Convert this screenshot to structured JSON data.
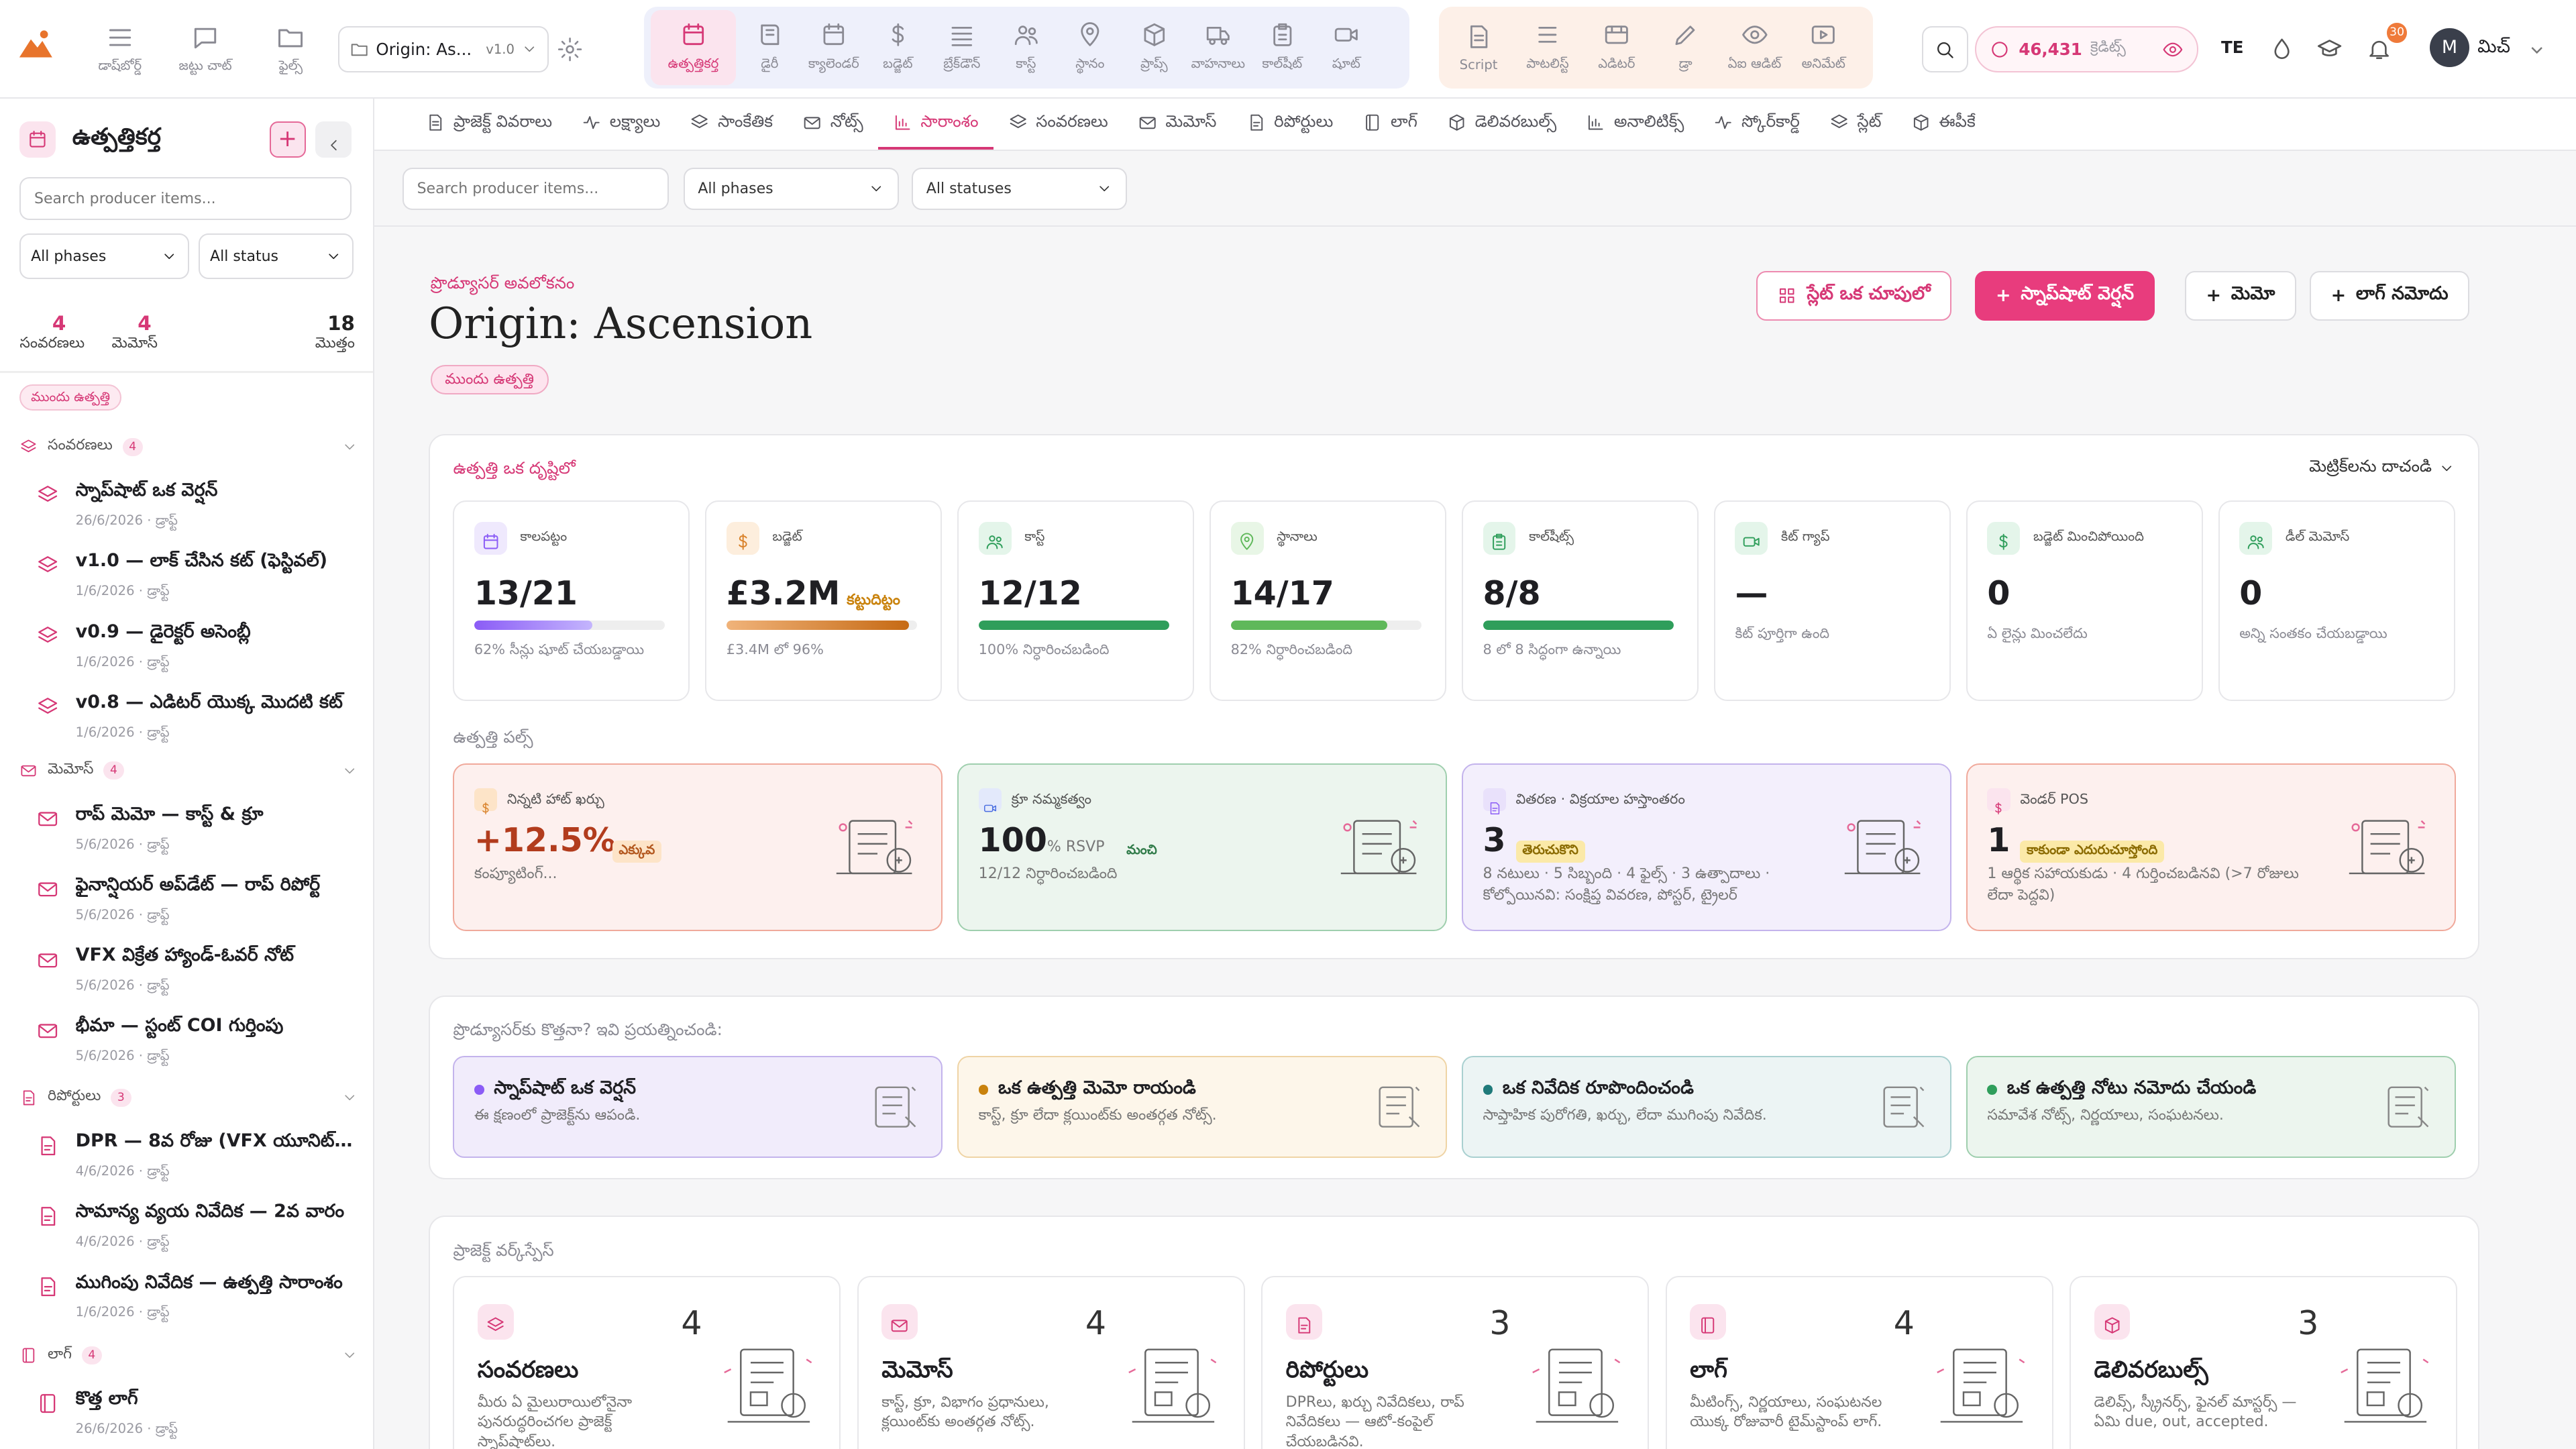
{
  "topnav": {
    "dashboard": "డాష్‌బోర్డ్",
    "team_chat": "జట్టు చాట్",
    "files": "ఫైల్స్",
    "project_name": "Origin: As...",
    "project_version": "v1.0",
    "modules": [
      "ఉత్పత్తికర్త",
      "డైరీ",
      "క్యాలెండర్",
      "బడ్జెట్",
      "బ్రేక్‌డౌన్",
      "కాస్ట్",
      "స్థానం",
      "ప్రాప్స్",
      "వాహనాలు",
      "కాల్‌షీట్",
      "షూట్"
    ],
    "modules2": [
      "Script",
      "పాటలిస్ట్",
      "ఎడిటర్",
      "డ్రా",
      "ఏఐ ఆడిట్",
      "అనిమేట్"
    ],
    "credits_value": "46,431",
    "credits_unit": "క్రెడిట్స్",
    "lang": "TE",
    "notif_count": "30",
    "avatar_letter": "M",
    "user_name": "మిచ్"
  },
  "sidebar": {
    "title": "ఉత్పత్తికర్త",
    "add": "+",
    "search_placeholder": "Search producer items...",
    "phase_select": "All phases",
    "status_select": "All status",
    "stats": {
      "versions_n": "4",
      "versions_l": "సంవరణలు",
      "memos_n": "4",
      "memos_l": "మెమోస్",
      "total_n": "18",
      "total_l": "మొత్తం"
    },
    "phase_badge": "ముందు ఉత్పత్తి",
    "groups": [
      {
        "label": "సంవరణలు",
        "count": "4",
        "items": [
          {
            "title": "స్నాప్‌షాట్ ఒక వెర్షన్",
            "sub": "26/6/2026 · డ్రాఫ్ట్"
          },
          {
            "title": "v1.0 — లాక్ చేసిన కట్ (ఫెస్టివల్)",
            "sub": "1/6/2026 · డ్రాఫ్ట్"
          },
          {
            "title": "v0.9 — డైరెక్టర్ అసెంబ్లీ",
            "sub": "1/6/2026 · డ్రాఫ్ట్"
          },
          {
            "title": "v0.8 — ఎడిటర్ యొక్క మొదటి కట్",
            "sub": "1/6/2026 · డ్రాఫ్ట్"
          }
        ]
      },
      {
        "label": "మెమోస్",
        "count": "4",
        "items": [
          {
            "title": "రాప్ మెమో — కాస్ట్ & క్రూ",
            "sub": "5/6/2026 · డ్రాఫ్ట్"
          },
          {
            "title": "ఫైనాన్షియర్ అప్‌డేట్ — రాప్ రిపోర్ట్",
            "sub": "5/6/2026 · డ్రాఫ్ట్"
          },
          {
            "title": "VFX విక్రేత హ్యాండ్-ఓవర్ నోట్",
            "sub": "5/6/2026 · డ్రాఫ్ట్"
          },
          {
            "title": "భీమా — స్టంట్ COI గుర్తింపు",
            "sub": "5/6/2026 · డ్రాఫ్ట్"
          }
        ]
      },
      {
        "label": "రిపోర్టులు",
        "count": "3",
        "items": [
          {
            "title": "DPR — 8వ రోజు (VFX యూనిట్ రోజు)",
            "sub": "4/6/2026 · డ్రాఫ్ట్"
          },
          {
            "title": "సామాన్య వ్యయ నివేదిక — 2వ వారం",
            "sub": "4/6/2026 · డ్రాఫ్ట్"
          },
          {
            "title": "ముగింపు నివేదిక — ఉత్పత్తి సారాంశం",
            "sub": "1/6/2026 · డ్రాఫ్ట్"
          }
        ]
      },
      {
        "label": "లాగ్",
        "count": "4",
        "items": [
          {
            "title": "కొత్త లాగ్",
            "sub": "26/6/2026 · డ్రాఫ్ట్"
          }
        ]
      }
    ]
  },
  "tabs": [
    "ప్రాజెక్ట్ వివరాలు",
    "లక్ష్యాలు",
    "సాంకేతిక",
    "నోట్స్",
    "సారాంశం",
    "సంవరణలు",
    "మెమోస్",
    "రిపోర్టులు",
    "లాగ్",
    "డెలివరబుల్స్",
    "అనాలిటిక్స్",
    "స్కోర్‌కార్డ్",
    "స్లేట్",
    "ఈపీకే"
  ],
  "filters": {
    "search_placeholder": "Search producer items...",
    "phase": "All phases",
    "status": "All statuses"
  },
  "header": {
    "kicker": "ప్రొడ్యూసర్ అవలోకనం",
    "title": "Origin: Ascension",
    "phase": "ముందు ఉత్పత్తి",
    "btn_slate": "స్లేట్ ఒక చూపులో",
    "btn_snapshot": "స్నాప్‌షాట్ వెర్షన్",
    "btn_memo": "మెమో",
    "btn_log": "లాగ్ నమోదు"
  },
  "glance": {
    "title": "ఉత్పత్తి ఒక దృష్టిలో",
    "hide_metrics": "మెట్రిక్‌లను దాచండి",
    "metrics": [
      {
        "label": "కాలపట్టం",
        "value": "13/21",
        "tag": "",
        "sub": "62% సీన్లు షూట్ చేయబడ్డాయి",
        "progress": 62,
        "color": "#8b5cf6",
        "bg": "#efe9fd",
        "icolor": "#8b5cf6"
      },
      {
        "label": "బడ్జెట్",
        "value": "£3.2M",
        "tag": "కట్టుదిట్టం",
        "sub": "£3.4M లో 96%",
        "progress": 96,
        "color": "#d9822b",
        "bg": "#fdeedd",
        "icolor": "#d9822b"
      },
      {
        "label": "కాస్ట్",
        "value": "12/12",
        "tag": "",
        "sub": "100% నిర్ధారించబడింది",
        "progress": 100,
        "color": "#2f9e5b",
        "bg": "#e4f5ea",
        "icolor": "#2f9e5b"
      },
      {
        "label": "స్థానాలు",
        "value": "14/17",
        "tag": "",
        "sub": "82% నిర్ధారించబడింది",
        "progress": 82,
        "color": "#5fb85a",
        "bg": "#e8f6e6",
        "icolor": "#5fb85a"
      },
      {
        "label": "కాల్‌షీట్స్",
        "value": "8/8",
        "tag": "",
        "sub": "8 లో 8 సిద్ధంగా ఉన్నాయి",
        "progress": 100,
        "color": "#2f9e5b",
        "bg": "#e4f5ea",
        "icolor": "#2f9e5b"
      },
      {
        "label": "కిట్ గ్యాప్",
        "value": "—",
        "tag": "",
        "sub": "కిట్ పూర్తిగా ఉంది",
        "progress": null,
        "color": "#2f9e5b",
        "bg": "#e4f5ea",
        "icolor": "#2f9e5b"
      },
      {
        "label": "బడ్జెట్ మించిపోయింది",
        "value": "0",
        "tag": "",
        "sub": "ఏ లైన్లు మించలేదు",
        "progress": null,
        "color": "#2f9e5b",
        "bg": "#e4f5ea",
        "icolor": "#2f9e5b"
      },
      {
        "label": "డీల్ మెమోస్",
        "value": "0",
        "tag": "",
        "sub": "అన్ని సంతకం చేయబడ్డాయి",
        "progress": null,
        "color": "#2f9e5b",
        "bg": "#e4f5ea",
        "icolor": "#2f9e5b"
      }
    ],
    "pulse_title": "ఉత్పత్తి పల్స్",
    "pulse": [
      {
        "label": "నిన్నటి హాట్ ఖర్చు",
        "value": "+12.5%",
        "tag": "ఎక్కువ",
        "sub": "కంప్యూటింగ్...",
        "bg": "#fdf0ee",
        "border": "#f0a99b",
        "vcolor": "#b23c1d",
        "tagbg": "#fde4c8",
        "tagcolor": "#b2561d",
        "icolor": "#d9822b",
        "ibg": "#fde4c8"
      },
      {
        "label": "క్రూ నమ్మకత్వం",
        "value": "100",
        "unit": "% RSVP",
        "tag": "మంచి",
        "sub": "12/12 నిర్ధారించబడింది",
        "bg": "#ecf5ee",
        "border": "#9fcfae",
        "vcolor": "#1f1f23",
        "tagbg": "#ecf5ee",
        "tagcolor": "#2f7a48",
        "icolor": "#4a6ee0",
        "ibg": "#e3e9fb"
      },
      {
        "label": "వితరణ · విక్రయాల హస్తాంతరం",
        "value": "3",
        "tag": "తెరుచుకొని",
        "sub": "8 నటులు · 5 సిబ్బంది · 4 ఫైల్స్ · 3 ఉత్పాదాలు · కోల్పోయినవి: సంక్షిప్త వివరణ, పోస్టర్, ట్రైలర్",
        "bg": "#f3effc",
        "border": "#c3b3ec",
        "vcolor": "#1f1f23",
        "tagbg": "#fbe9a8",
        "tagcolor": "#8a6a00",
        "icolor": "#8b5cf6",
        "ibg": "#e9e1fb"
      },
      {
        "label": "వెండర్ POS",
        "value": "1",
        "tag": "కాకుండా ఎదురుచూస్తోంది",
        "sub": "1 ఆర్థిక సహాయకుడు · 4 గుర్తించబడినవి (>7 రోజులు లేదా పెద్దవి)",
        "bg": "#fdf0ee",
        "border": "#f0a99b",
        "vcolor": "#1f1f23",
        "tagbg": "#fbe9a8",
        "tagcolor": "#8a6a00",
        "icolor": "#d63876",
        "ibg": "#fbe4ee"
      }
    ]
  },
  "try": {
    "title": "ప్రొడ్యూసర్‌కు కొత్తనా? ఇవి ప్రయత్నించండి:",
    "items": [
      {
        "title": "స్నాప్‌షాట్ ఒక వెర్షన్",
        "desc": "ఈ క్షణంలో ప్రాజెక్ట్‌ను ఆపండి.",
        "bg": "#f1ecfb",
        "border": "#c3b3ec",
        "dot": "#8b5cf6"
      },
      {
        "title": "ఒక ఉత్పత్తి మెమో రాయండి",
        "desc": "కాస్ట్, క్రూ లేదా క్లయింట్‌కు అంతర్గత నోట్స్.",
        "bg": "#fdf6ea",
        "border": "#efd4a5",
        "dot": "#c9820c"
      },
      {
        "title": "ఒక నివేదిక రూపొందించండి",
        "desc": "సాప్తాహిక పురోగతి, ఖర్చు, లేదా ముగింపు నివేదిక.",
        "bg": "#ecf4f4",
        "border": "#a9d0d0",
        "dot": "#1f7a7a"
      },
      {
        "title": "ఒక ఉత్పత్తి నోటు నమోదు చేయండి",
        "desc": "సమావేశ నోట్స్, నిర్ణయాలు, సంఘటనలు.",
        "bg": "#ecf5ee",
        "border": "#9fcfae",
        "dot": "#2f9e5b"
      }
    ]
  },
  "workspace": {
    "title": "ప్రాజెక్ట్ వర్క్‌స్పేస్",
    "items": [
      {
        "title": "సంవరణలు",
        "count": "4",
        "desc": "మీరు ఏ మైలురాయిలోనైనా పునరుద్ధరించగల ప్రాజెక్ట్ స్నాప్‌షాట్‌లు."
      },
      {
        "title": "మెమోస్",
        "count": "4",
        "desc": "కాస్ట్, క్రూ, విభాగం ప్రధానులు, క్లయింట్‌కు అంతర్గత నోట్స్."
      },
      {
        "title": "రిపోర్టులు",
        "count": "3",
        "desc": "DPRలు, ఖర్చు నివేదికలు, రాప్ నివేదికలు — ఆటో-కంపైల్ చేయబడినవి."
      },
      {
        "title": "లాగ్",
        "count": "4",
        "desc": "మీటింగ్స్, నిర్ణయాలు, సంఘటనల యొక్క రోజువారీ టైమ్‌స్టాంప్ లాగ్."
      },
      {
        "title": "డెలివరబుల్స్",
        "count": "3",
        "desc": "డెలివ్స్, స్క్రీనర్స్, ఫైనల్ మాస్టర్స్ — ఏమి due, out, accepted."
      }
    ]
  }
}
